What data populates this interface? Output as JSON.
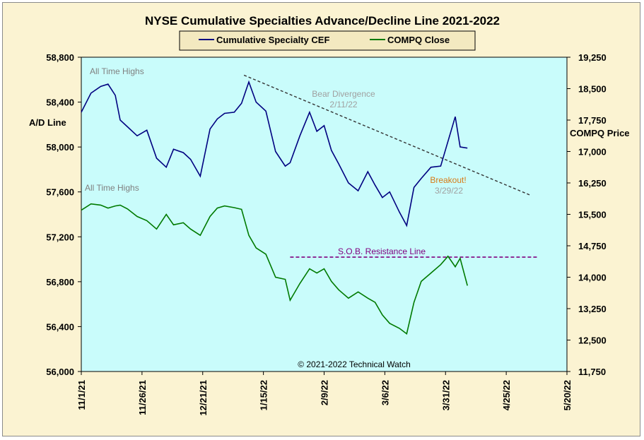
{
  "chart_data": {
    "type": "line",
    "title": "NYSE Cumulative  Specialties  Advance/Decline  Line  2021-2022",
    "legend": {
      "position": "top-center",
      "entries": [
        "Cumulative Specialty CEF",
        "COMPQ Close"
      ]
    },
    "grid": false,
    "background": "#c9fcfb",
    "copyright": "© 2021-2022  Technical Watch",
    "y_left": {
      "label": "A/D Line",
      "min": 56000,
      "max": 58800,
      "ticks": [
        56000,
        56400,
        56800,
        57200,
        57600,
        58000,
        58400,
        58800
      ],
      "tick_labels": [
        "56,000",
        "56,400",
        "56,800",
        "57,200",
        "57,600",
        "58,000",
        "58,400",
        "58,800"
      ]
    },
    "y_right": {
      "label": "COMPQ Price",
      "min": 11750,
      "max": 19250,
      "ticks": [
        11750,
        12500,
        13250,
        14000,
        14750,
        15500,
        16250,
        17000,
        17750,
        18500,
        19250
      ],
      "tick_labels": [
        "11,750",
        "12,500",
        "13,250",
        "14,000",
        "14,750",
        "15,500",
        "16,250",
        "17,000",
        "17,750",
        "18,500",
        "19,250"
      ]
    },
    "x_axis": {
      "ticks": [
        "11/1/21",
        "11/26/21",
        "12/21/21",
        "1/15/22",
        "2/9/22",
        "3/6/22",
        "3/31/22",
        "4/25/22",
        "5/20/22"
      ]
    },
    "series": [
      {
        "name": "Cumulative Specialty CEF",
        "axis": "left",
        "color": "#000080",
        "x": [
          "11/1/21",
          "11/5/21",
          "11/9/21",
          "11/12/21",
          "11/15/21",
          "11/17/21",
          "11/20/21",
          "11/24/21",
          "11/28/21",
          "12/2/21",
          "12/6/21",
          "12/9/21",
          "12/13/21",
          "12/16/21",
          "12/20/21",
          "12/24/21",
          "12/27/21",
          "12/30/21",
          "1/3/22",
          "1/6/22",
          "1/9/22",
          "1/12/22",
          "1/16/22",
          "1/20/22",
          "1/24/22",
          "1/26/22",
          "1/30/22",
          "2/3/22",
          "2/6/22",
          "2/9/22",
          "2/12/22",
          "2/15/22",
          "2/19/22",
          "2/23/22",
          "2/27/22",
          "3/2/22",
          "3/5/22",
          "3/8/22",
          "3/12/22",
          "3/15/22",
          "3/18/22",
          "3/21/22",
          "3/25/22",
          "3/29/22",
          "4/1/22",
          "4/4/22",
          "4/6/22",
          "4/9/22"
        ],
        "y": [
          58310,
          58480,
          58540,
          58560,
          58460,
          58240,
          58180,
          58100,
          58150,
          57900,
          57820,
          57980,
          57950,
          57890,
          57740,
          58160,
          58250,
          58300,
          58310,
          58390,
          58580,
          58400,
          58320,
          57960,
          57830,
          57860,
          58100,
          58310,
          58140,
          58190,
          57970,
          57850,
          57680,
          57610,
          57780,
          57660,
          57550,
          57600,
          57420,
          57300,
          57640,
          57720,
          57820,
          57830,
          58050,
          58270,
          58000,
          57990
        ]
      },
      {
        "name": "COMPQ Close",
        "axis": "right",
        "color": "#007a00",
        "x": [
          "11/1/21",
          "11/5/21",
          "11/9/21",
          "11/12/21",
          "11/15/21",
          "11/17/21",
          "11/20/21",
          "11/24/21",
          "11/28/21",
          "12/2/21",
          "12/6/21",
          "12/9/21",
          "12/13/21",
          "12/16/21",
          "12/20/21",
          "12/24/21",
          "12/27/21",
          "12/30/21",
          "1/3/22",
          "1/6/22",
          "1/9/22",
          "1/12/22",
          "1/16/22",
          "1/20/22",
          "1/24/22",
          "1/26/22",
          "1/30/22",
          "2/3/22",
          "2/6/22",
          "2/9/22",
          "2/12/22",
          "2/15/22",
          "2/19/22",
          "2/23/22",
          "2/27/22",
          "3/2/22",
          "3/5/22",
          "3/8/22",
          "3/12/22",
          "3/15/22",
          "3/18/22",
          "3/21/22",
          "3/25/22",
          "3/29/22",
          "4/1/22",
          "4/4/22",
          "4/6/22",
          "4/9/22"
        ],
        "y": [
          15600,
          15750,
          15720,
          15650,
          15700,
          15720,
          15630,
          15450,
          15350,
          15150,
          15500,
          15250,
          15300,
          15150,
          15000,
          15450,
          15650,
          15700,
          15660,
          15620,
          15000,
          14700,
          14550,
          14000,
          13950,
          13450,
          13850,
          14200,
          14100,
          14200,
          13900,
          13700,
          13500,
          13650,
          13500,
          13400,
          13100,
          12900,
          12780,
          12650,
          13400,
          13900,
          14100,
          14300,
          14500,
          14250,
          14450,
          13800
        ]
      }
    ],
    "annotations": [
      {
        "text": "All Time Highs",
        "series": "Cumulative Specialty CEF"
      },
      {
        "text": "All Time Highs",
        "series": "COMPQ Close"
      },
      {
        "text": "Bear Divergence",
        "date": "2/11/22"
      },
      {
        "text": "Breakout!",
        "date": "3/29/22"
      },
      {
        "text": "S.O.B. Resistance Line"
      }
    ],
    "trendlines": [
      {
        "name": "Bear Divergence",
        "style": "dashed",
        "color": "#333333",
        "axis": "left",
        "x": [
          "1/7/22",
          "5/5/22"
        ],
        "y": [
          58640,
          57570
        ]
      },
      {
        "name": "S.O.B. Resistance Line",
        "style": "dashed",
        "color": "#800080",
        "axis": "right",
        "x": [
          "1/26/22",
          "5/8/22"
        ],
        "y": [
          14480,
          14480
        ]
      }
    ]
  }
}
